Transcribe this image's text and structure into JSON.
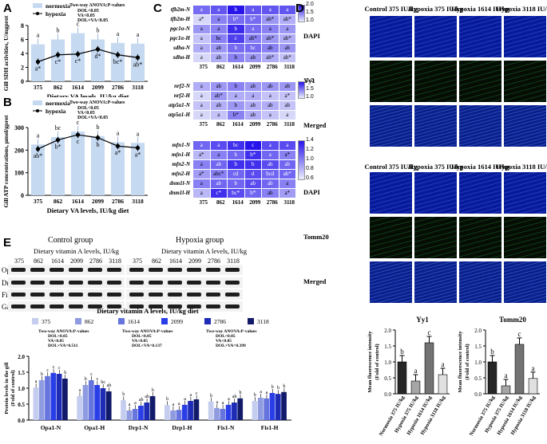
{
  "panels": {
    "A": {
      "letter": "A",
      "chart_data": {
        "type": "line",
        "categories": [
          "375",
          "862",
          "1614",
          "2099",
          "2786",
          "3118"
        ],
        "series": [
          {
            "name": "normoxia",
            "values": [
              5.3,
              6.0,
              6.9,
              6.0,
              5.5,
              5.4
            ],
            "labels": [
              "a",
              "b",
              "c",
              "b",
              "a",
              "a"
            ]
          },
          {
            "name": "hypoxia",
            "values": [
              2.8,
              3.8,
              3.9,
              4.6,
              3.8,
              3.4
            ],
            "labels": [
              "a*",
              "c*",
              "c*",
              "d*",
              "bc*",
              "ab*"
            ]
          }
        ],
        "ylabel": "Gill SDH activities, U/mgprot",
        "xlabel": "Dietary VA levels, IU/kg diet",
        "ylim": [
          0,
          8
        ],
        "yticks": [
          "0",
          "2",
          "4",
          "6",
          "8"
        ],
        "legend": [
          "normoxia",
          "hypoxia"
        ],
        "anova_title": "Two-way ANOVA:P-values",
        "anova": [
          "DOL<0.05",
          "VA<0.05",
          "DOL×VA<0.05"
        ]
      }
    },
    "B": {
      "letter": "B",
      "chart_data": {
        "type": "line",
        "categories": [
          "375",
          "862",
          "1614",
          "2099",
          "2786",
          "3118"
        ],
        "series": [
          {
            "name": "normoxia",
            "values": [
              225,
              258,
              282,
              262,
              235,
              232
            ],
            "labels": [
              "a",
              "bc",
              "c",
              "b",
              "a",
              "a"
            ]
          },
          {
            "name": "hypoxia",
            "values": [
              205,
              245,
              268,
              255,
              218,
              210
            ],
            "labels": [
              "ab*",
              "b*",
              "c",
              "b",
              "a*",
              "a*"
            ]
          }
        ],
        "ylabel": "Gill ATP concentrations, μmol/gprot",
        "xlabel": "Dietary VA levels, IU/kg diet",
        "ylim": [
          0,
          300
        ],
        "yticks": [
          "0",
          "100",
          "200",
          "300"
        ],
        "legend": [
          "normoxia",
          "hypoxia"
        ],
        "anova_title": "Two-way ANOVA:P-values",
        "anova": [
          "DOL<0.05",
          "VA<0.05",
          "DOL×VA<0.05"
        ]
      }
    },
    "C": {
      "letter": "C",
      "chart_data": {
        "type": "heatmap",
        "xlabels": [
          "375",
          "862",
          "1614",
          "2099",
          "2786",
          "3118"
        ],
        "blocks": [
          {
            "rows": [
              "tfb2m-N",
              "tfb2m-H",
              "pgc1α-N",
              "pgc1α-H",
              "sdha-N",
              "sdha-H"
            ],
            "values": [
              [
                1.6,
                1.7,
                2.0,
                1.7,
                1.7,
                1.7
              ],
              [
                1.1,
                1.5,
                1.6,
                1.6,
                1.4,
                1.3
              ],
              [
                1.4,
                1.5,
                1.9,
                1.6,
                1.5,
                1.4
              ],
              [
                1.2,
                1.5,
                1.8,
                1.5,
                1.4,
                1.3
              ],
              [
                1.3,
                1.4,
                1.6,
                1.6,
                1.5,
                1.4
              ],
              [
                1.1,
                1.3,
                1.5,
                1.4,
                1.3,
                1.2
              ]
            ],
            "labels": [
              [
                "a",
                "a",
                "b",
                "a",
                "a",
                "a"
              ],
              [
                "a*",
                "a",
                "b*",
                "b*",
                "ab*",
                "ab*"
              ],
              [
                "a",
                "a",
                "b",
                "a",
                "a",
                "a"
              ],
              [
                "a",
                "bc",
                "c",
                "ab*",
                "ab*",
                "ab*"
              ],
              [
                "a",
                "ab",
                "b",
                "bc",
                "ab",
                "ab"
              ],
              [
                "a",
                "ab",
                "b",
                "ab",
                "ab*",
                "ab*"
              ]
            ],
            "scale": [
              "2.0",
              "1.5",
              "1.0"
            ]
          },
          {
            "rows": [
              "nrf2-N",
              "nrf2-H",
              "atp5a1-N",
              "atp5a1-H"
            ],
            "values": [
              [
                1.3,
                1.4,
                1.5,
                1.4,
                1.4,
                1.4
              ],
              [
                1.1,
                1.4,
                1.3,
                1.3,
                1.2,
                1.2
              ],
              [
                1.2,
                1.3,
                1.4,
                1.3,
                1.3,
                1.2
              ],
              [
                1.1,
                1.2,
                1.5,
                1.3,
                1.2,
                1.1
              ]
            ],
            "labels": [
              [
                "a",
                "ab",
                "b",
                "ab",
                "ab",
                "ab"
              ],
              [
                "a",
                "ab*",
                "a",
                "a",
                "a",
                "a*"
              ],
              [
                "a",
                "ab",
                "b",
                "ab",
                "ab",
                "ab"
              ],
              [
                "a",
                "a",
                "b*",
                "ab",
                "a",
                "a"
              ]
            ],
            "scale": [
              "2.0",
              "1.5",
              "1.0"
            ]
          },
          {
            "rows": [
              "mfn1-N",
              "mfn1-H",
              "mfn2-N",
              "mfn2-H",
              "dnm1l-N",
              "dnm1l-H"
            ],
            "values": [
              [
                1.1,
                1.2,
                1.3,
                1.4,
                1.2,
                1.2
              ],
              [
                0.8,
                1.0,
                1.1,
                1.3,
                1.1,
                1.0
              ],
              [
                1.0,
                1.1,
                1.3,
                1.3,
                1.2,
                1.1
              ],
              [
                0.9,
                1.0,
                1.1,
                1.2,
                1.1,
                1.1
              ],
              [
                1.0,
                1.1,
                1.1,
                1.2,
                1.1,
                1.0
              ],
              [
                0.8,
                1.3,
                1.2,
                1.1,
                1.0,
                0.9
              ]
            ],
            "labels": [
              [
                "a",
                "a",
                "bc",
                "c",
                "a",
                "a"
              ],
              [
                "a*",
                "a",
                "b",
                "b*",
                "a",
                "a*"
              ],
              [
                "a",
                "ab",
                "b",
                "b",
                "ab",
                "ab"
              ],
              [
                "a*",
                "abc*",
                "cd",
                "d",
                "bcd",
                "ab*"
              ],
              [
                "a",
                "ab",
                "b",
                "ab",
                "ab",
                "a"
              ],
              [
                "a",
                "c*",
                "bc*",
                "b*",
                "ab",
                "a*"
              ]
            ],
            "scale": [
              "1.4",
              "1.2",
              "1.0",
              "0.8",
              "0.6"
            ]
          }
        ]
      }
    },
    "D": {
      "letter": "D",
      "group_top_headers": [
        "Control 375 IU/kg",
        "Hypoxia 375 IU/kg",
        "Hypoxia 1614 IU/kg",
        "Hypoxia 3118 IU/kg"
      ],
      "rows_top": [
        "DAPI",
        "Yy1",
        "Merged"
      ],
      "group_bottom_headers": [
        "Control 375 IU/kg",
        "Hypoxia 375 IU/kg",
        "Hypoxia 1614 IU/kg",
        "Hypoxia 3118 IU/kg"
      ],
      "rows_bottom": [
        "DAPI",
        "Tomm20",
        "Merged"
      ],
      "chart_data": [
        {
          "type": "bar",
          "title": "Yy1",
          "categories": [
            "Normoxia 375 IU/kg",
            "Hypoxia 375 IU/kg",
            "Hypoxia 1614 IU/kg",
            "Hypoxia 3118 IU/kg"
          ],
          "values": [
            1.0,
            0.4,
            1.6,
            0.6
          ],
          "labels": [
            "b",
            "a",
            "c",
            "a"
          ],
          "ylabel": "Mean fluorescence intensity (Fold of control)",
          "ylim": [
            0,
            2.0
          ],
          "yticks": [
            "0.0",
            "0.5",
            "1.0",
            "1.5",
            "2.0"
          ],
          "colors": [
            "#262626",
            "#a6a6a6",
            "#737373",
            "#e0e0e0"
          ]
        },
        {
          "type": "bar",
          "title": "Tomm20",
          "categories": [
            "Normoxia 375 IU/kg",
            "Hypoxia 375 IU/kg",
            "Hypoxia 1614 IU/kg",
            "Hypoxia 3118 IU/kg"
          ],
          "values": [
            1.0,
            0.25,
            1.55,
            0.48
          ],
          "labels": [
            "b",
            "a",
            "c",
            "a"
          ],
          "ylabel": "Mean fluorescence intensity (Fold of control)",
          "ylim": [
            0,
            2.0
          ],
          "yticks": [
            "0.0",
            "0.5",
            "1.0",
            "1.5",
            "2.0"
          ],
          "colors": [
            "#262626",
            "#a6a6a6",
            "#737373",
            "#e0e0e0"
          ]
        }
      ]
    },
    "E": {
      "letter": "E",
      "control_group": "Control group",
      "hypoxia_group": "Hypoxia group",
      "dose_caption": "Dietary vitamin A levels, IU/kg",
      "lanes": [
        "375",
        "862",
        "1614",
        "2099",
        "2786",
        "3118"
      ],
      "proteins": [
        "Opa1",
        "Drp1",
        "Fis1",
        "Gapdh"
      ],
      "chart_data": {
        "type": "bar",
        "title": "Dietary vitamin A levels, IU/kg diet",
        "categories": [
          "Opa1-N",
          "Opa1-H",
          "Drp1-N",
          "Drp1-H",
          "Fis1-N",
          "Fis1-H"
        ],
        "series": [
          {
            "name": "375",
            "values": [
              1.02,
              0.75,
              0.62,
              0.47,
              0.58,
              0.6
            ]
          },
          {
            "name": "862",
            "values": [
              1.25,
              1.1,
              0.3,
              0.3,
              0.38,
              0.7
            ]
          },
          {
            "name": "1614",
            "values": [
              1.38,
              1.25,
              0.35,
              0.32,
              0.35,
              0.68
            ]
          },
          {
            "name": "2099",
            "values": [
              1.48,
              1.1,
              0.45,
              0.48,
              0.48,
              0.85
            ]
          },
          {
            "name": "2786",
            "values": [
              1.45,
              1.0,
              0.55,
              0.6,
              0.55,
              0.82
            ]
          },
          {
            "name": "3118",
            "values": [
              1.3,
              0.9,
              0.75,
              0.65,
              0.68,
              0.88
            ]
          }
        ],
        "series_colors": [
          "#c4cdee",
          "#8e9be0",
          "#6675dd",
          "#2a3ee8",
          "#1d2bb5",
          "#121a6a"
        ],
        "ylabel": "Protein levels in the gill (Fold of control)",
        "ylim": [
          0.0,
          2.0
        ],
        "yticks": [
          "0.0",
          "0.5",
          "1.0",
          "1.5",
          "2.0"
        ],
        "letters": [
          [
            "a",
            "b",
            "c",
            "c",
            "c",
            "b"
          ],
          [
            "a",
            "b",
            "c",
            "c",
            "bc",
            "ab"
          ],
          [
            "b",
            "a",
            "a",
            "ab",
            "ab",
            "b"
          ],
          [
            "b",
            "a",
            "a",
            "a",
            "a",
            "c"
          ],
          [
            "b",
            "a",
            "a",
            "a",
            "ab",
            "b"
          ],
          [
            "b",
            "a",
            "a",
            "b",
            "b",
            "b"
          ]
        ],
        "anova": [
          {
            "title": "Two-way ANOVA:P-values",
            "lines": [
              "DOL<0.05",
              "VA<0.05",
              "DOL×VA=0.511"
            ]
          },
          {
            "title": "Two-way ANOVA:P-values",
            "lines": [
              "DOL<0.05",
              "VA<0.05",
              "DOL×VA=0.137"
            ]
          },
          {
            "title": "Two-way ANOVA:P-values",
            "lines": [
              "DOL<0.05",
              "VA<0.05",
              "DOL×VA=0.399"
            ]
          }
        ]
      }
    }
  }
}
